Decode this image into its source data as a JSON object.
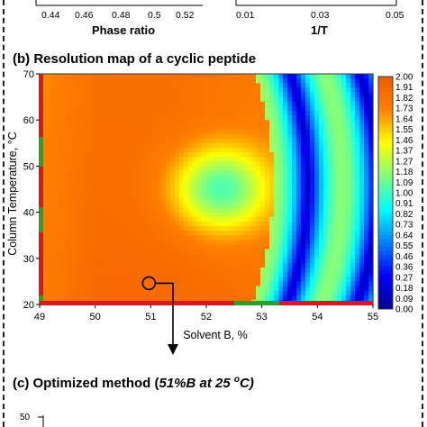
{
  "panel_a_fragment": {
    "left_axis": {
      "ticks": [
        "0.44",
        "0.46",
        "0.48",
        "0.5",
        "0.52"
      ],
      "label": "Phase ratio"
    },
    "right_axis": {
      "ticks": [
        "0.01",
        "0.03",
        "0.05"
      ],
      "label": "1/T"
    }
  },
  "panel_b": {
    "title": "(b) Resolution map of a cyclic peptide"
  },
  "panel_c": {
    "title_prefix": "(c) Optimized method (",
    "title_method": "51%B at  25 ",
    "title_deg": "o",
    "title_suffix": "C)",
    "ytick": "50"
  },
  "chart_data": {
    "type": "heatmap",
    "title": "(b) Resolution map of a cyclic peptide",
    "xlabel": "Solvent B, %",
    "ylabel": "Column Temperature, °C",
    "xlim": [
      49,
      55
    ],
    "ylim": [
      20,
      70
    ],
    "x_ticks": [
      "49",
      "50",
      "51",
      "52",
      "53",
      "54",
      "55"
    ],
    "y_ticks": [
      "20",
      "30",
      "40",
      "50",
      "60",
      "70"
    ],
    "colorbar_ticks": [
      "2.00",
      "1.91",
      "1.82",
      "1.73",
      "1.64",
      "1.55",
      "1.46",
      "1.37",
      "1.27",
      "1.18",
      "1.09",
      "1.00",
      "0.91",
      "0.82",
      "0.73",
      "0.64",
      "0.55",
      "0.46",
      "0.36",
      "0.27",
      "0.18",
      "0.09",
      "0.00"
    ],
    "colorbar_range": [
      0.0,
      2.0
    ],
    "colormap": [
      "#00008f",
      "#0000ff",
      "#0080ff",
      "#00ffff",
      "#80ff80",
      "#ffff00",
      "#ff8000",
      "#f05a00"
    ],
    "optimum_marker": {
      "x": 51.0,
      "y": 25
    },
    "red_edge_color": "#d7191c",
    "green_edge_color": "#2ca02c"
  }
}
